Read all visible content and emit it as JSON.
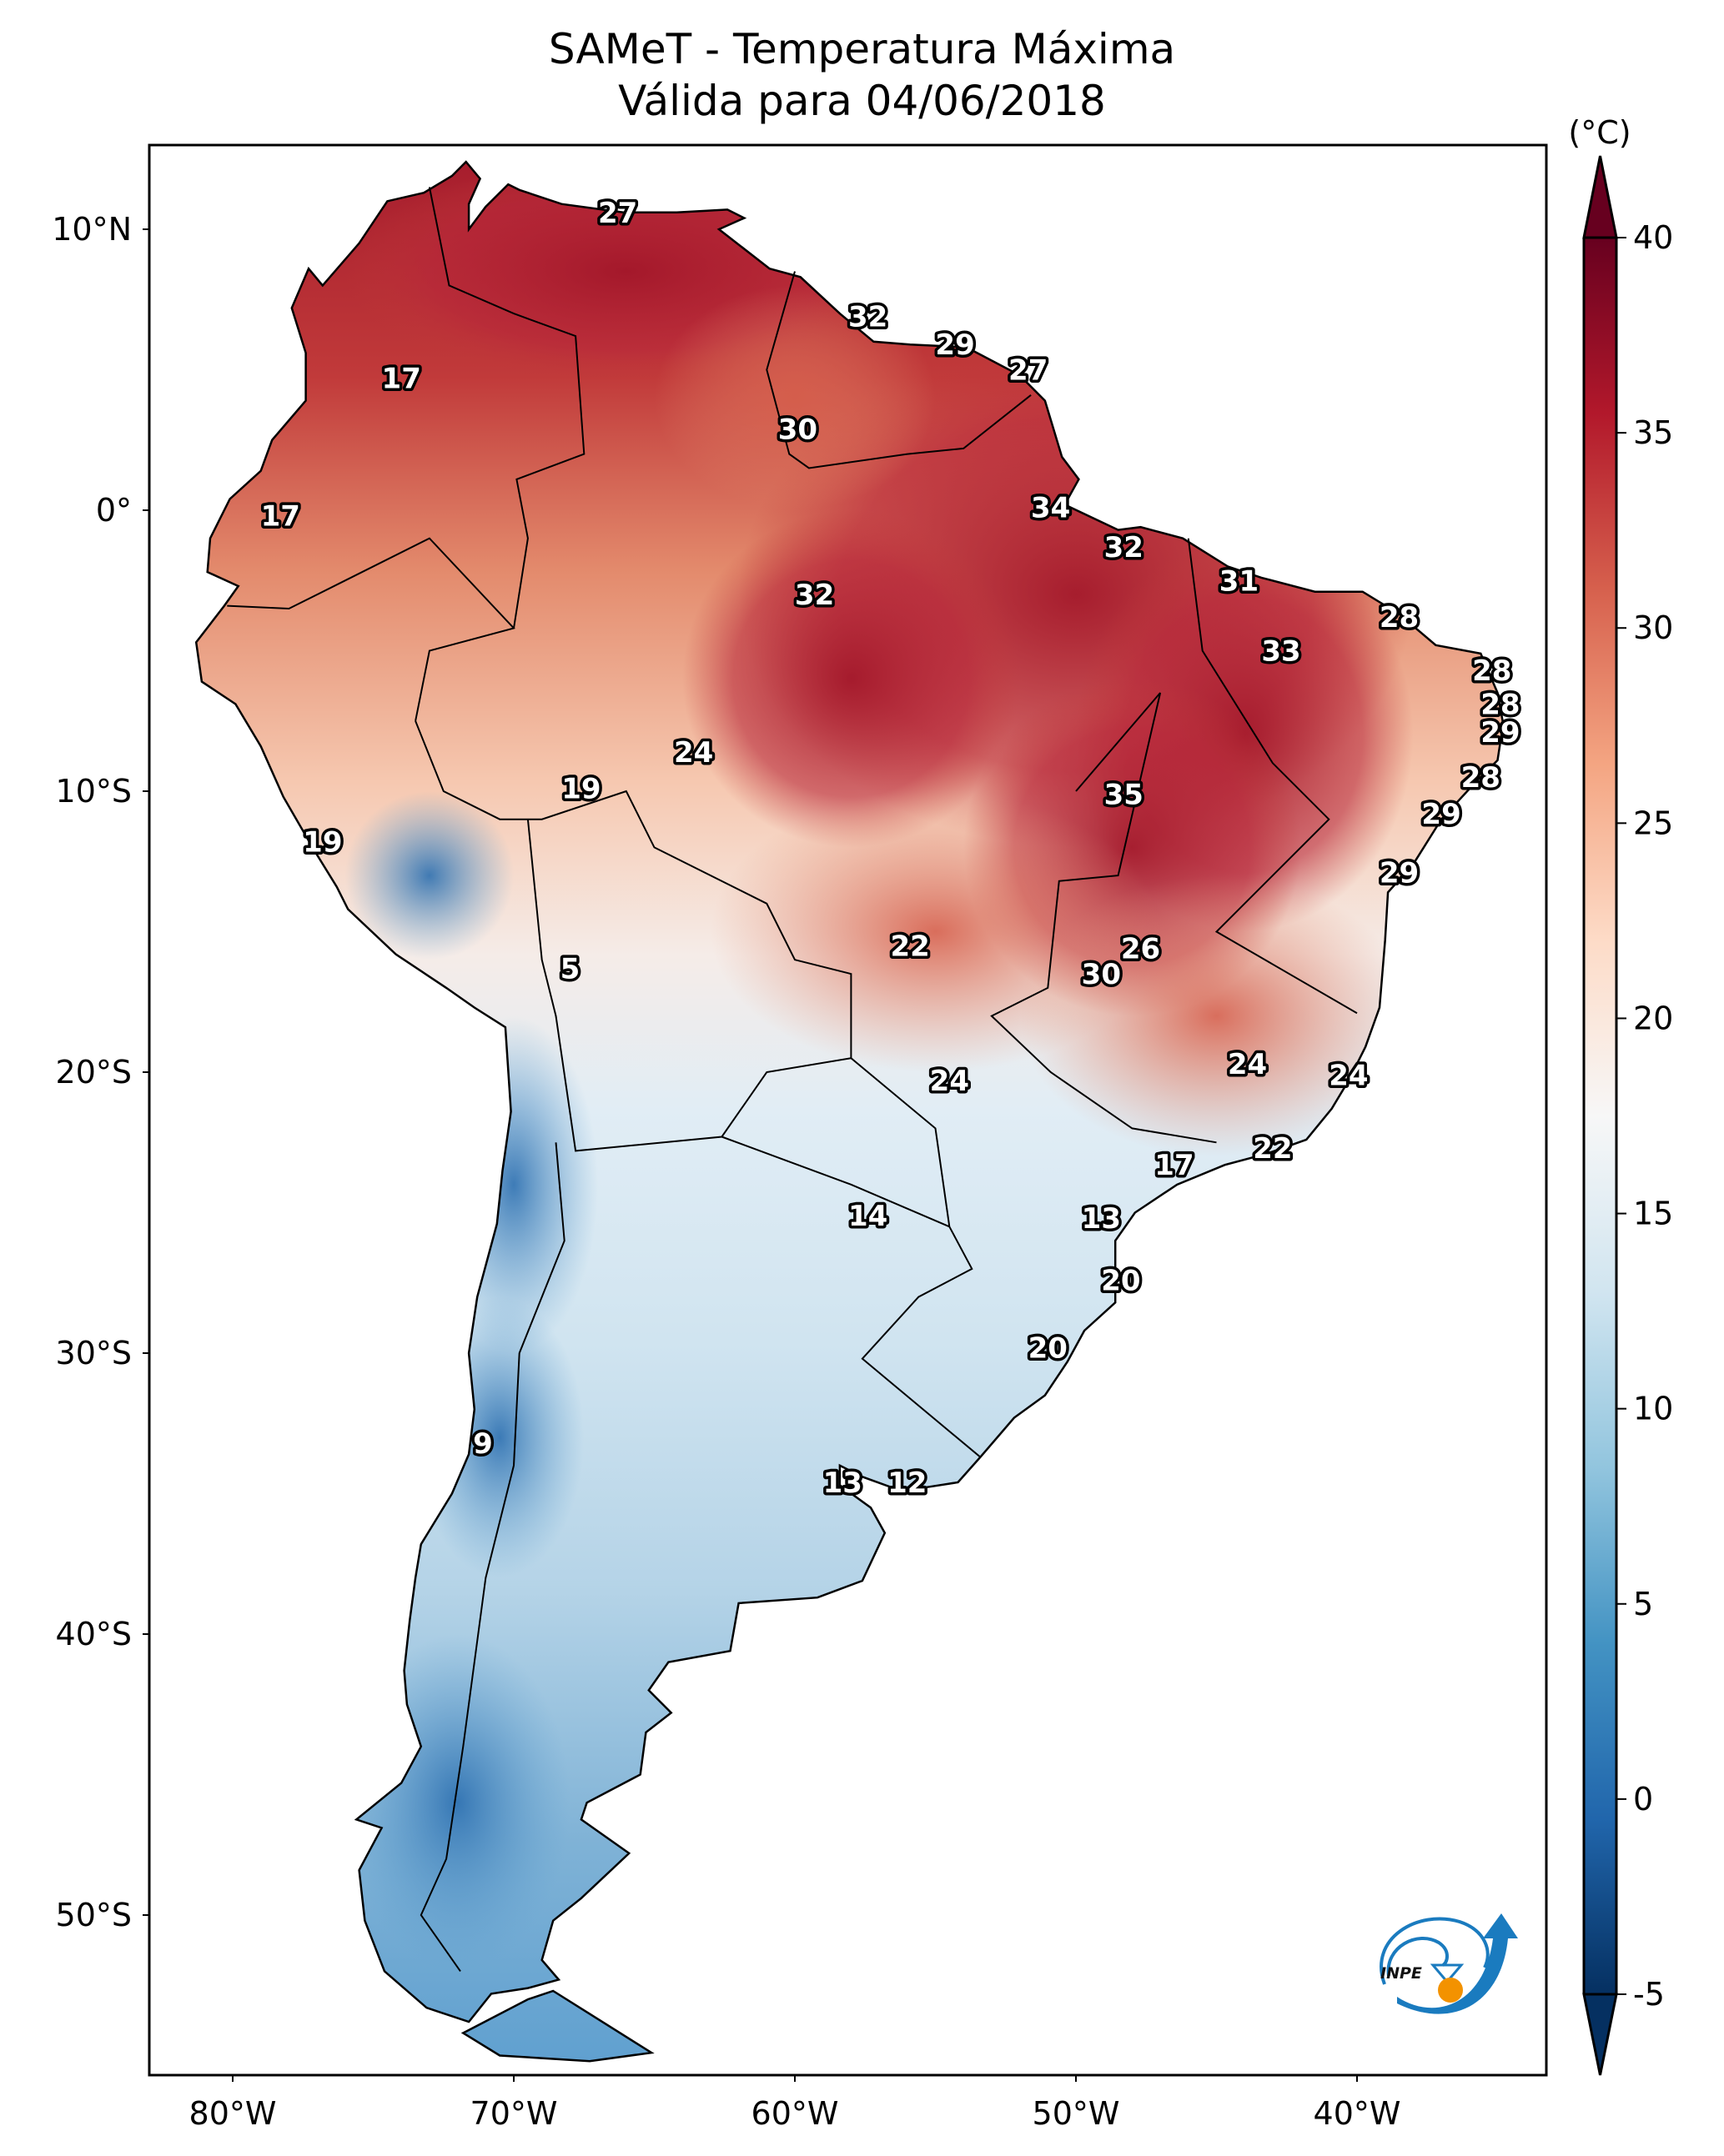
{
  "title": {
    "line1": "SAMeT - Temperatura Máxima",
    "line2": "Válida para 04/06/2018"
  },
  "chart_data": {
    "type": "heatmap",
    "title": "SAMeT - Temperatura Máxima",
    "subtitle": "Válida para 04/06/2018",
    "variable": "Maximum temperature",
    "units": "(°C)",
    "region": "South America",
    "extent": {
      "lon": [
        -83,
        -33.3
      ],
      "lat": [
        -55.7,
        13
      ]
    },
    "x_ticks": [
      {
        "value": -80,
        "label": "80°W"
      },
      {
        "value": -70,
        "label": "70°W"
      },
      {
        "value": -60,
        "label": "60°W"
      },
      {
        "value": -50,
        "label": "50°W"
      },
      {
        "value": -40,
        "label": "40°W"
      }
    ],
    "y_ticks": [
      {
        "value": 10,
        "label": "10°N"
      },
      {
        "value": 0,
        "label": "0°"
      },
      {
        "value": -10,
        "label": "10°S"
      },
      {
        "value": -20,
        "label": "20°S"
      },
      {
        "value": -30,
        "label": "30°S"
      },
      {
        "value": -40,
        "label": "40°S"
      },
      {
        "value": -50,
        "label": "50°S"
      }
    ],
    "colorbar": {
      "label": "(°C)",
      "range": [
        -5,
        40
      ],
      "extend": "both",
      "ticks": [
        40,
        35,
        30,
        25,
        20,
        15,
        10,
        5,
        0,
        -5
      ],
      "tick_labels": [
        "40",
        "35",
        "30",
        "25",
        "20",
        "15",
        "10",
        "5",
        "0",
        "-5"
      ],
      "colormap": "RdBu_r",
      "colors": [
        "#053061",
        "#2166ac",
        "#4393c3",
        "#92c5de",
        "#d1e5f0",
        "#f7f7f7",
        "#fddbc7",
        "#f4a582",
        "#d6604d",
        "#b2182b",
        "#67001f"
      ]
    },
    "annotations": [
      {
        "value": 27,
        "lon": -66.3,
        "lat": 10.6
      },
      {
        "value": 32,
        "lon": -57.4,
        "lat": 6.9
      },
      {
        "value": 29,
        "lon": -54.3,
        "lat": 5.9
      },
      {
        "value": 27,
        "lon": -51.7,
        "lat": 5.0
      },
      {
        "value": 17,
        "lon": -74.0,
        "lat": 4.7
      },
      {
        "value": 30,
        "lon": -59.9,
        "lat": 2.9
      },
      {
        "value": 17,
        "lon": -78.3,
        "lat": -0.2
      },
      {
        "value": 34,
        "lon": -50.9,
        "lat": 0.1
      },
      {
        "value": 32,
        "lon": -48.3,
        "lat": -1.3
      },
      {
        "value": 31,
        "lon": -44.2,
        "lat": -2.5
      },
      {
        "value": 32,
        "lon": -59.3,
        "lat": -3.0
      },
      {
        "value": 28,
        "lon": -38.5,
        "lat": -3.8
      },
      {
        "value": 33,
        "lon": -42.7,
        "lat": -5.0
      },
      {
        "value": 28,
        "lon": -35.2,
        "lat": -5.7
      },
      {
        "value": 28,
        "lon": -34.9,
        "lat": -6.9
      },
      {
        "value": 29,
        "lon": -34.9,
        "lat": -7.9
      },
      {
        "value": 24,
        "lon": -63.6,
        "lat": -8.6
      },
      {
        "value": 28,
        "lon": -35.6,
        "lat": -9.5
      },
      {
        "value": 19,
        "lon": -67.6,
        "lat": -9.9
      },
      {
        "value": 35,
        "lon": -48.3,
        "lat": -10.1
      },
      {
        "value": 29,
        "lon": -37.0,
        "lat": -10.8
      },
      {
        "value": 19,
        "lon": -76.8,
        "lat": -11.8
      },
      {
        "value": 29,
        "lon": -38.5,
        "lat": -12.9
      },
      {
        "value": 22,
        "lon": -55.9,
        "lat": -15.5
      },
      {
        "value": 26,
        "lon": -47.7,
        "lat": -15.6
      },
      {
        "value": 5,
        "lon": -68.0,
        "lat": -16.3
      },
      {
        "value": 30,
        "lon": -49.1,
        "lat": -16.5
      },
      {
        "value": 24,
        "lon": -43.9,
        "lat": -19.7
      },
      {
        "value": 24,
        "lon": -54.5,
        "lat": -20.3
      },
      {
        "value": 24,
        "lon": -40.3,
        "lat": -20.1
      },
      {
        "value": 22,
        "lon": -43.0,
        "lat": -22.7
      },
      {
        "value": 17,
        "lon": -46.5,
        "lat": -23.3
      },
      {
        "value": 14,
        "lon": -57.4,
        "lat": -25.1
      },
      {
        "value": 13,
        "lon": -49.1,
        "lat": -25.2
      },
      {
        "value": 20,
        "lon": -48.4,
        "lat": -27.4
      },
      {
        "value": 20,
        "lon": -51.0,
        "lat": -29.8
      },
      {
        "value": 9,
        "lon": -71.1,
        "lat": -33.2
      },
      {
        "value": 13,
        "lon": -58.3,
        "lat": -34.6
      },
      {
        "value": 12,
        "lon": -56.0,
        "lat": -34.6
      }
    ]
  },
  "logo": {
    "text": "INPE"
  }
}
